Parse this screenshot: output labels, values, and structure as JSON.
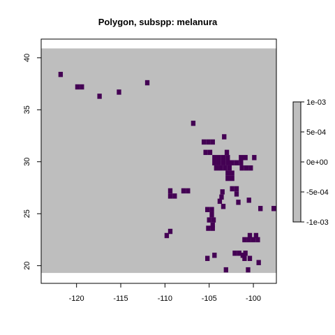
{
  "chart_data": {
    "type": "heatmap",
    "title": "Polygon, subspp: melanura",
    "xlabel": "",
    "ylabel": "",
    "xlim": [
      -124,
      -97.4
    ],
    "ylim": [
      18.3,
      41.8
    ],
    "raster_extent": {
      "x": [
        -124,
        -97.4
      ],
      "y": [
        19.3,
        40.9
      ]
    },
    "cell_size": 0.5,
    "xticks": [
      -120,
      -115,
      -110,
      -105,
      -100
    ],
    "yticks": [
      20,
      25,
      30,
      35,
      40
    ],
    "background_color": "#bebebe",
    "cell_color": "#440154",
    "legend": {
      "position": "right",
      "range": [
        -0.001,
        0.001
      ],
      "ticks": [
        "1e-03",
        "5e-04",
        "0e+00",
        "-5e-04",
        "-1e-03"
      ],
      "fill_color": "#bebebe"
    },
    "cells": [
      [
        -121.8,
        38.4
      ],
      [
        -119.9,
        37.2
      ],
      [
        -119.4,
        37.2
      ],
      [
        -117.4,
        36.3
      ],
      [
        -115.2,
        36.7
      ],
      [
        -112.0,
        37.6
      ],
      [
        -106.8,
        33.7
      ],
      [
        -105.6,
        31.9
      ],
      [
        -105.1,
        31.9
      ],
      [
        -104.6,
        31.9
      ],
      [
        -103.3,
        32.4
      ],
      [
        -105.4,
        30.9
      ],
      [
        -104.9,
        30.9
      ],
      [
        -103.0,
        30.9
      ],
      [
        -104.4,
        30.4
      ],
      [
        -103.9,
        30.4
      ],
      [
        -103.4,
        30.4
      ],
      [
        -102.9,
        30.4
      ],
      [
        -101.4,
        30.4
      ],
      [
        -100.9,
        30.4
      ],
      [
        -99.9,
        30.4
      ],
      [
        -101.9,
        29.9
      ],
      [
        -104.4,
        29.9
      ],
      [
        -103.9,
        29.9
      ],
      [
        -103.4,
        29.9
      ],
      [
        -102.9,
        29.9
      ],
      [
        -102.4,
        29.9
      ],
      [
        -101.4,
        29.9
      ],
      [
        -104.2,
        29.4
      ],
      [
        -103.7,
        29.4
      ],
      [
        -103.2,
        29.4
      ],
      [
        -102.7,
        29.4
      ],
      [
        -101.3,
        29.4
      ],
      [
        -100.8,
        29.4
      ],
      [
        -100.3,
        29.4
      ],
      [
        -102.9,
        28.9
      ],
      [
        -102.4,
        28.9
      ],
      [
        -102.9,
        28.4
      ],
      [
        -102.4,
        28.4
      ],
      [
        -102.4,
        27.4
      ],
      [
        -101.9,
        27.4
      ],
      [
        -109.4,
        27.2
      ],
      [
        -107.9,
        27.2
      ],
      [
        -107.4,
        27.2
      ],
      [
        -103.5,
        27.1
      ],
      [
        -101.9,
        26.9
      ],
      [
        -109.4,
        26.7
      ],
      [
        -108.9,
        26.7
      ],
      [
        -103.6,
        26.6
      ],
      [
        -103.8,
        26.2
      ],
      [
        -101.7,
        26.1
      ],
      [
        -100.5,
        26.3
      ],
      [
        -103.4,
        25.7
      ],
      [
        -105.2,
        25.4
      ],
      [
        -104.7,
        25.4
      ],
      [
        -99.2,
        25.5
      ],
      [
        -97.7,
        25.5
      ],
      [
        -104.7,
        24.9
      ],
      [
        -105.0,
        24.4
      ],
      [
        -104.5,
        24.4
      ],
      [
        -104.6,
        23.9
      ],
      [
        -105.1,
        23.6
      ],
      [
        -104.6,
        23.6
      ],
      [
        -109.4,
        23.3
      ],
      [
        -109.8,
        22.9
      ],
      [
        -100.4,
        22.9
      ],
      [
        -99.7,
        22.9
      ],
      [
        -101.0,
        22.5
      ],
      [
        -100.5,
        22.5
      ],
      [
        -100.0,
        22.5
      ],
      [
        -99.5,
        22.5
      ],
      [
        -102.1,
        21.2
      ],
      [
        -101.6,
        21.2
      ],
      [
        -100.9,
        21.2
      ],
      [
        -104.4,
        21.0
      ],
      [
        -101.2,
        21.0
      ],
      [
        -105.2,
        20.7
      ],
      [
        -101.0,
        20.7
      ],
      [
        -100.4,
        20.7
      ],
      [
        -99.4,
        20.3
      ],
      [
        -103.1,
        19.6
      ],
      [
        -100.6,
        19.6
      ]
    ]
  }
}
